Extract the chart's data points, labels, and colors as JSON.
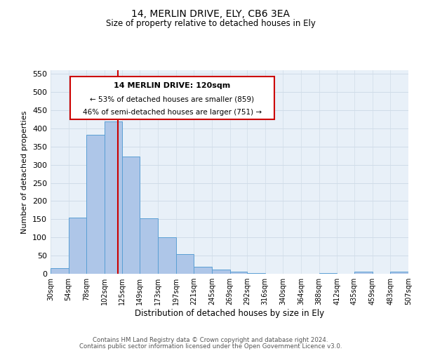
{
  "title": "14, MERLIN DRIVE, ELY, CB6 3EA",
  "subtitle": "Size of property relative to detached houses in Ely",
  "xlabel": "Distribution of detached houses by size in Ely",
  "ylabel": "Number of detached properties",
  "footer_line1": "Contains HM Land Registry data © Crown copyright and database right 2024.",
  "footer_line2": "Contains public sector information licensed under the Open Government Licence v3.0.",
  "annotation_line1": "14 MERLIN DRIVE: 120sqm",
  "annotation_line2": "← 53% of detached houses are smaller (859)",
  "annotation_line3": "46% of semi-detached houses are larger (751) →",
  "bar_left_edges": [
    30,
    54,
    78,
    102,
    125,
    149,
    173,
    197,
    221,
    245,
    269,
    292,
    316,
    340,
    364,
    388,
    412,
    435,
    459,
    483
  ],
  "bar_widths": [
    24,
    24,
    24,
    23,
    24,
    24,
    24,
    24,
    24,
    24,
    23,
    24,
    24,
    24,
    24,
    24,
    23,
    24,
    24,
    24
  ],
  "bar_heights": [
    15,
    155,
    383,
    420,
    323,
    152,
    100,
    55,
    20,
    12,
    5,
    2,
    0,
    0,
    0,
    2,
    0,
    5,
    0,
    5
  ],
  "bar_color": "#aec6e8",
  "bar_edge_color": "#5a9fd4",
  "vline_x": 120,
  "vline_color": "#cc0000",
  "ylim": [
    0,
    560
  ],
  "yticks": [
    0,
    50,
    100,
    150,
    200,
    250,
    300,
    350,
    400,
    450,
    500,
    550
  ],
  "xtick_labels": [
    "30sqm",
    "54sqm",
    "78sqm",
    "102sqm",
    "125sqm",
    "149sqm",
    "173sqm",
    "197sqm",
    "221sqm",
    "245sqm",
    "269sqm",
    "292sqm",
    "316sqm",
    "340sqm",
    "364sqm",
    "388sqm",
    "412sqm",
    "435sqm",
    "459sqm",
    "483sqm",
    "507sqm"
  ],
  "xtick_positions": [
    30,
    54,
    78,
    102,
    125,
    149,
    173,
    197,
    221,
    245,
    269,
    292,
    316,
    340,
    364,
    388,
    412,
    435,
    459,
    483,
    507
  ],
  "annotation_box_color": "#cc0000",
  "grid_color": "#d0dce8",
  "background_color": "#e8f0f8",
  "title_fontsize": 10,
  "subtitle_fontsize": 8.5,
  "ylabel_fontsize": 8,
  "xlabel_fontsize": 8.5,
  "ytick_fontsize": 8,
  "xtick_fontsize": 7
}
